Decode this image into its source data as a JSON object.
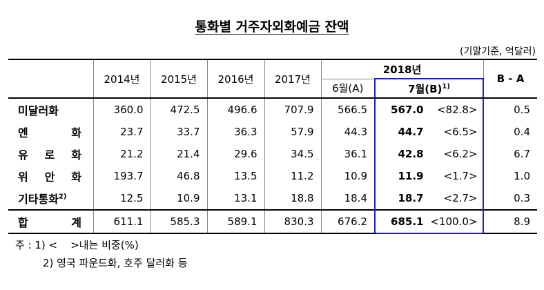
{
  "title": "통화별 거주자외화예금 잔액",
  "unit": "(기말기준, 억달러)",
  "table": {
    "header": {
      "years": [
        "2014년",
        "2015년",
        "2016년",
        "2017년"
      ],
      "year2018": "2018년",
      "jun": "6월(A)",
      "jul": "7월(B)",
      "jul_note": "1)",
      "diff": "B - A"
    },
    "rows": [
      {
        "label": "미달러화",
        "values": [
          "360.0",
          "472.5",
          "496.6",
          "707.9",
          "566.5"
        ],
        "jul": "567.0",
        "share": "<82.8>",
        "diff": "0.5"
      },
      {
        "label": "엔 화",
        "values": [
          "23.7",
          "33.7",
          "36.3",
          "57.9",
          "44.3"
        ],
        "jul": "44.7",
        "share": "<6.5>",
        "diff": "0.4"
      },
      {
        "label": "유 로 화",
        "values": [
          "21.2",
          "21.4",
          "29.6",
          "34.5",
          "36.1"
        ],
        "jul": "42.8",
        "share": "<6.2>",
        "diff": "6.7"
      },
      {
        "label": "위 안 화",
        "values": [
          "193.7",
          "46.8",
          "13.5",
          "11.2",
          "10.9"
        ],
        "jul": "11.9",
        "share": "<1.7>",
        "diff": "1.0"
      },
      {
        "label": "기타통화",
        "note": "2)",
        "values": [
          "12.5",
          "10.9",
          "13.1",
          "18.8",
          "18.4"
        ],
        "jul": "18.7",
        "share": "<2.7>",
        "diff": "0.3"
      },
      {
        "label": "합 계",
        "values": [
          "611.1",
          "585.3",
          "589.1",
          "830.3",
          "676.2"
        ],
        "jul": "685.1",
        "share": "<100.0>",
        "diff": "8.9"
      }
    ]
  },
  "notes": [
    "주 : 1) <    >내는 비중(%)",
    "2) 영국 파운드화, 호주 달러화 등"
  ]
}
